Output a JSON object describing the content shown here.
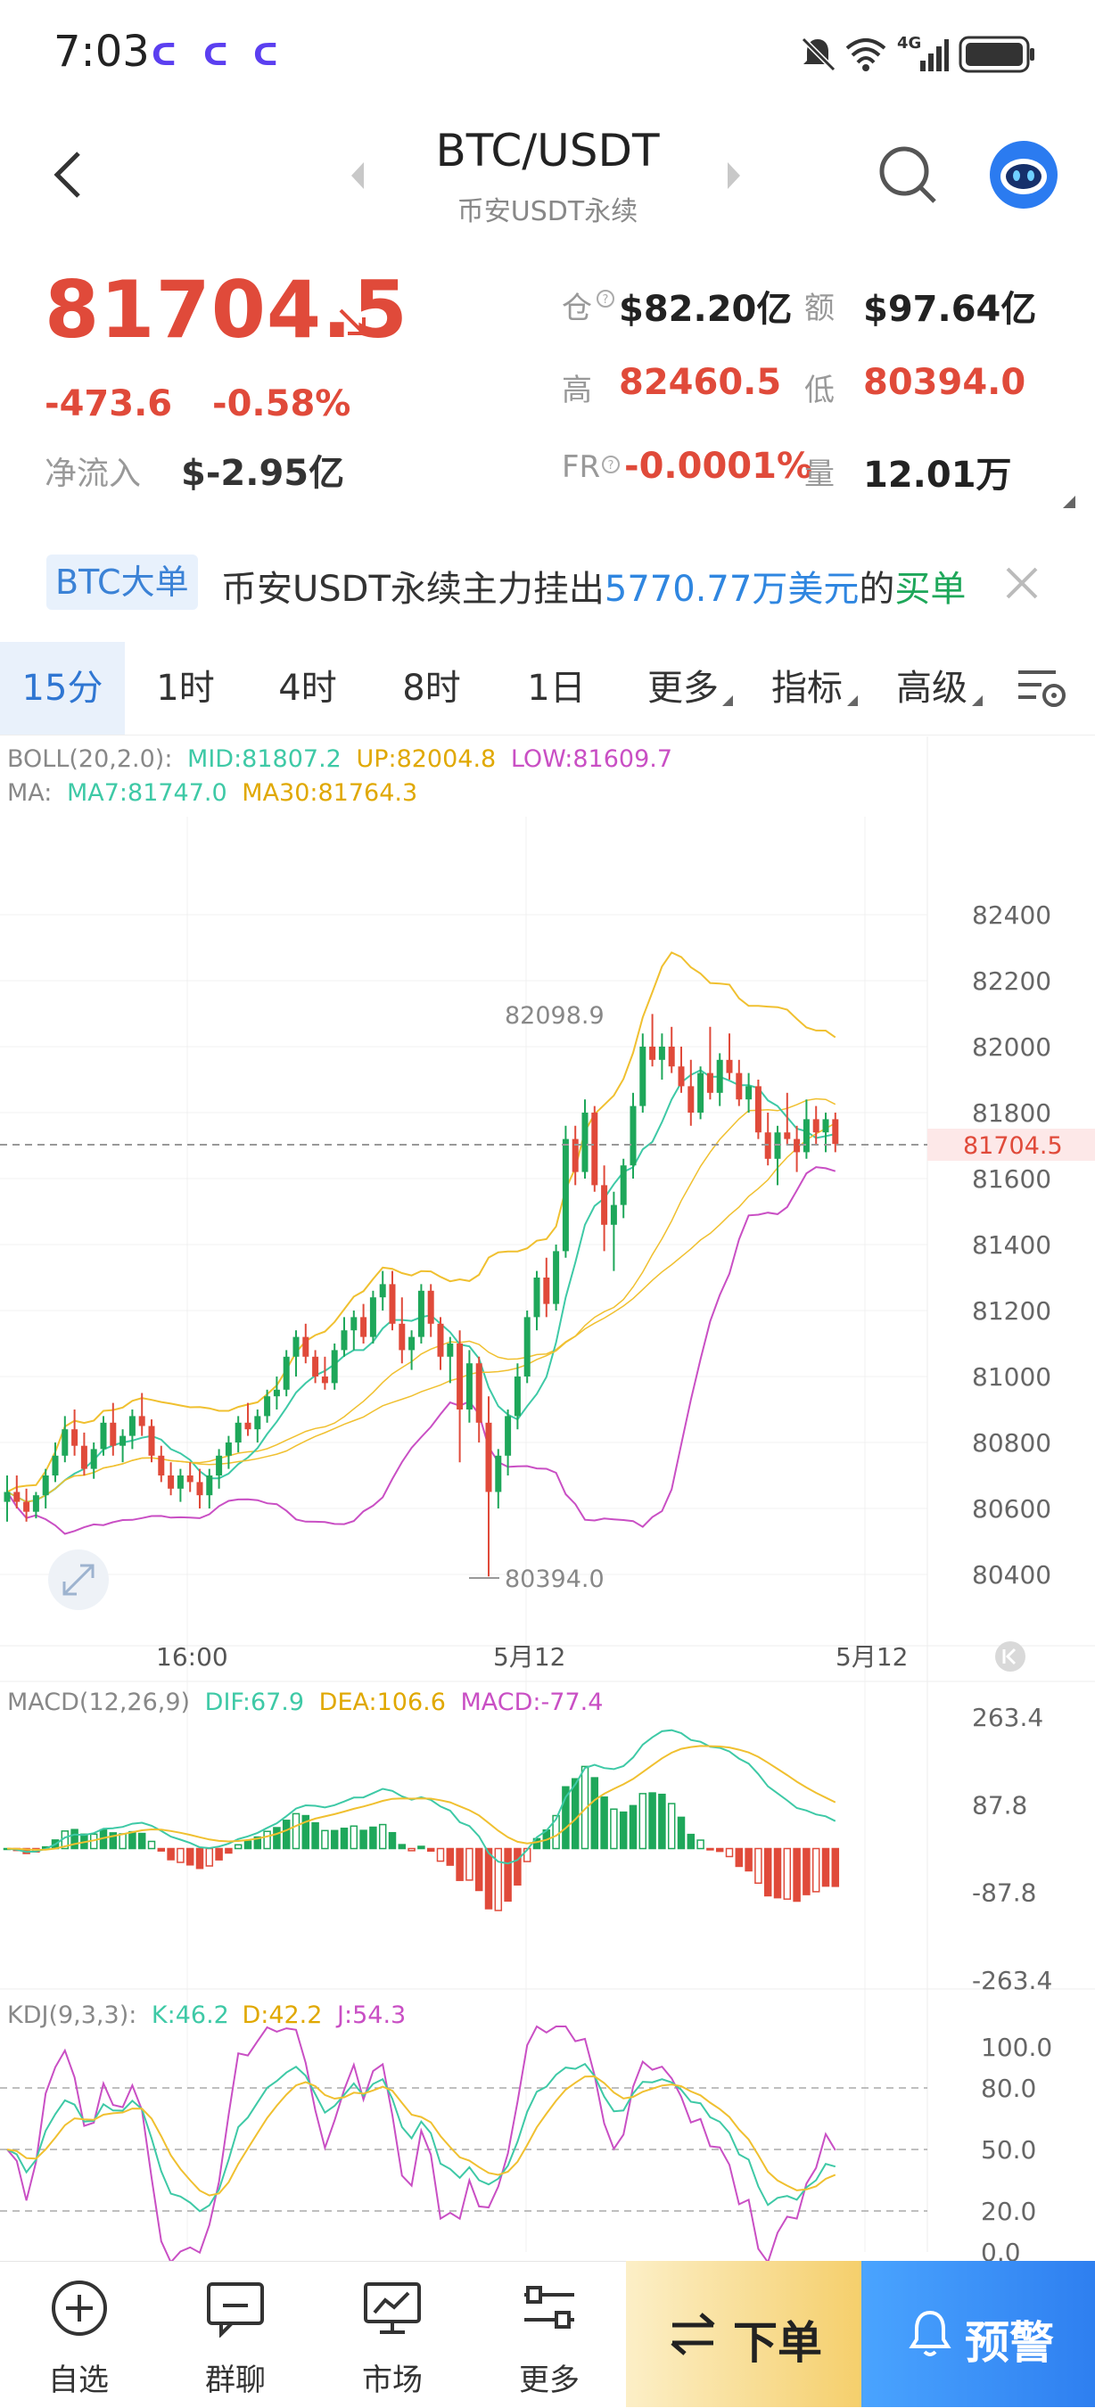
{
  "status_bar": {
    "time": "7:03",
    "network": "4G"
  },
  "header": {
    "title": "BTC/USDT",
    "subtitle": "币安USDT永续"
  },
  "price": {
    "last": "81704.5",
    "change_abs": "-473.6",
    "change_pct": "-0.58%",
    "net_inflow_label": "净流入",
    "net_inflow_value": "$-2.95亿"
  },
  "stats": {
    "open_interest_label": "仓",
    "open_interest_value": "$82.20亿",
    "turnover_label": "额",
    "turnover_value": "$97.64亿",
    "high_label": "高",
    "high_value": "82460.5",
    "low_label": "低",
    "low_value": "80394.0",
    "funding_label": "FR",
    "funding_value": "-0.0001%",
    "volume_label": "量",
    "volume_value": "12.01万"
  },
  "banner": {
    "badge": "BTC大单",
    "text_prefix": "币安USDT永续主力挂出",
    "amount": "5770.77万美元",
    "text_mid": "的",
    "side": "买单"
  },
  "tabs": [
    {
      "label": "15分",
      "active": true
    },
    {
      "label": "1时"
    },
    {
      "label": "4时"
    },
    {
      "label": "8时"
    },
    {
      "label": "1日"
    },
    {
      "label": "更多"
    },
    {
      "label": "指标"
    },
    {
      "label": "高级"
    }
  ],
  "chart_data": [
    {
      "type": "candlestick",
      "legend_boll": {
        "name": "BOLL(20,2.0):",
        "mid": "MID:81807.2",
        "up": "UP:82004.8",
        "low": "LOW:81609.7"
      },
      "legend_ma": {
        "name": "MA:",
        "ma7": "MA7:81747.0",
        "ma30": "MA30:81764.3"
      },
      "y_ticks": [
        "82400",
        "82200",
        "82000",
        "81800",
        "81600",
        "81400",
        "81200",
        "81000",
        "80800",
        "80600",
        "80400"
      ],
      "ylim": [
        80300,
        82500
      ],
      "x_ticks": [
        "16:00",
        "5月12",
        "5月12"
      ],
      "current_price_label": "81704.5",
      "high_marker": "82098.9",
      "low_marker": "80394.0",
      "candles_ohlc": [
        [
          80620,
          80700,
          80560,
          80650
        ],
        [
          80650,
          80700,
          80600,
          80620
        ],
        [
          80620,
          80660,
          80560,
          80590
        ],
        [
          80590,
          80650,
          80570,
          80640
        ],
        [
          80640,
          80720,
          80600,
          80700
        ],
        [
          80700,
          80800,
          80680,
          80760
        ],
        [
          80760,
          80880,
          80740,
          80840
        ],
        [
          80840,
          80900,
          80760,
          80790
        ],
        [
          80790,
          80830,
          80700,
          80720
        ],
        [
          80720,
          80800,
          80690,
          80780
        ],
        [
          80780,
          80880,
          80760,
          80860
        ],
        [
          80860,
          80920,
          80760,
          80790
        ],
        [
          80790,
          80840,
          80740,
          80820
        ],
        [
          80820,
          80900,
          80780,
          80880
        ],
        [
          80880,
          80950,
          80820,
          80850
        ],
        [
          80850,
          80870,
          80740,
          80760
        ],
        [
          80760,
          80790,
          80680,
          80700
        ],
        [
          80700,
          80740,
          80640,
          80660
        ],
        [
          80660,
          80720,
          80620,
          80700
        ],
        [
          80700,
          80740,
          80650,
          80680
        ],
        [
          80680,
          80720,
          80600,
          80640
        ],
        [
          80640,
          80720,
          80600,
          80700
        ],
        [
          80700,
          80780,
          80660,
          80760
        ],
        [
          80760,
          80820,
          80720,
          80800
        ],
        [
          80800,
          80880,
          80770,
          80860
        ],
        [
          80860,
          80920,
          80820,
          80840
        ],
        [
          80840,
          80900,
          80800,
          80880
        ],
        [
          80880,
          80960,
          80860,
          80940
        ],
        [
          80940,
          81000,
          80900,
          80960
        ],
        [
          80960,
          81080,
          80940,
          81060
        ],
        [
          81060,
          81140,
          81000,
          81120
        ],
        [
          81120,
          81160,
          81040,
          81060
        ],
        [
          81060,
          81080,
          80980,
          81000
        ],
        [
          81000,
          81060,
          80960,
          80980
        ],
        [
          80980,
          81100,
          80960,
          81080
        ],
        [
          81080,
          81180,
          81060,
          81140
        ],
        [
          81140,
          81200,
          81080,
          81180
        ],
        [
          81180,
          81220,
          81100,
          81120
        ],
        [
          81120,
          81260,
          81100,
          81240
        ],
        [
          81240,
          81320,
          81200,
          81280
        ],
        [
          81280,
          81320,
          81140,
          81160
        ],
        [
          81160,
          81240,
          81040,
          81080
        ],
        [
          81080,
          81140,
          81020,
          81120
        ],
        [
          81120,
          81280,
          81100,
          81260
        ],
        [
          81260,
          81280,
          81120,
          81160
        ],
        [
          81160,
          81180,
          81020,
          81060
        ],
        [
          81060,
          81120,
          80980,
          81100
        ],
        [
          81100,
          81140,
          80740,
          80900
        ],
        [
          80900,
          81080,
          80860,
          81040
        ],
        [
          81040,
          81060,
          80800,
          80860
        ],
        [
          80860,
          80940,
          80394,
          80650
        ],
        [
          80650,
          80780,
          80600,
          80760
        ],
        [
          80760,
          80900,
          80700,
          80880
        ],
        [
          80880,
          81040,
          80840,
          81000
        ],
        [
          81000,
          81200,
          80980,
          81180
        ],
        [
          81180,
          81320,
          81140,
          81300
        ],
        [
          81300,
          81360,
          81180,
          81220
        ],
        [
          81220,
          81400,
          81200,
          81380
        ],
        [
          81380,
          81760,
          81360,
          81720
        ],
        [
          81720,
          81760,
          81580,
          81620
        ],
        [
          81620,
          81840,
          81600,
          81800
        ],
        [
          81800,
          81820,
          81560,
          81580
        ],
        [
          81580,
          81640,
          81380,
          81460
        ],
        [
          81460,
          81560,
          81320,
          81520
        ],
        [
          81520,
          81660,
          81480,
          81640
        ],
        [
          81640,
          81860,
          81600,
          81820
        ],
        [
          81820,
          82040,
          81800,
          82000
        ],
        [
          82000,
          82099,
          81940,
          81960
        ],
        [
          81960,
          82040,
          81900,
          82000
        ],
        [
          82000,
          82060,
          81920,
          81940
        ],
        [
          81940,
          82000,
          81860,
          81880
        ],
        [
          81880,
          81960,
          81760,
          81800
        ],
        [
          81800,
          81940,
          81780,
          81920
        ],
        [
          81920,
          82060,
          81840,
          81860
        ],
        [
          81860,
          81980,
          81820,
          81960
        ],
        [
          81960,
          82040,
          81900,
          81920
        ],
        [
          81920,
          81960,
          81820,
          81840
        ],
        [
          81840,
          81920,
          81800,
          81880
        ],
        [
          81880,
          81900,
          81720,
          81740
        ],
        [
          81740,
          81800,
          81640,
          81660
        ],
        [
          81660,
          81760,
          81580,
          81740
        ],
        [
          81740,
          81860,
          81700,
          81720
        ],
        [
          81720,
          81760,
          81620,
          81680
        ],
        [
          81680,
          81840,
          81660,
          81780
        ],
        [
          81780,
          81820,
          81700,
          81740
        ],
        [
          81740,
          81800,
          81680,
          81780
        ],
        [
          81780,
          81800,
          81680,
          81705
        ]
      ]
    },
    {
      "type": "bar",
      "legend": {
        "name": "MACD(12,26,9)",
        "dif": "DIF:67.9",
        "dea": "DEA:106.6",
        "macd": "MACD:-77.4"
      },
      "y_ticks": [
        "263.4",
        "87.8",
        "-87.8",
        "-263.4"
      ],
      "ylim": [
        -263.4,
        263.4
      ]
    },
    {
      "type": "line",
      "legend": {
        "name": "KDJ(9,3,3):",
        "k": "K:46.2",
        "d": "D:42.2",
        "j": "J:54.3"
      },
      "y_ticks": [
        "100.0",
        "80.0",
        "50.0",
        "20.0",
        "0.0"
      ],
      "ylim": [
        0,
        100
      ]
    }
  ],
  "bottom_nav": {
    "items": [
      {
        "label": "自选",
        "icon": "plus-circle-icon"
      },
      {
        "label": "群聊",
        "icon": "chat-icon"
      },
      {
        "label": "市场",
        "icon": "monitor-chart-icon"
      },
      {
        "label": "更多",
        "icon": "sliders-icon"
      }
    ],
    "order_label": "下单",
    "alert_label": "预警"
  },
  "colors": {
    "up": "#1ea75a",
    "down": "#e04a3a",
    "boll": "#f0c030",
    "boll_low": "#c94fc4",
    "ma7": "#3ec9a6",
    "accent": "#2f76d2"
  }
}
